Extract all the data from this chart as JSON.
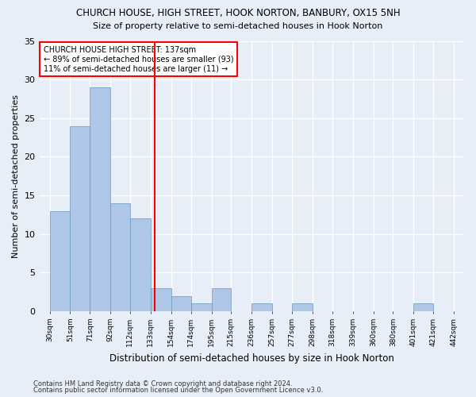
{
  "title": "CHURCH HOUSE, HIGH STREET, HOOK NORTON, BANBURY, OX15 5NH",
  "subtitle": "Size of property relative to semi-detached houses in Hook Norton",
  "xlabel": "Distribution of semi-detached houses by size in Hook Norton",
  "ylabel": "Number of semi-detached properties",
  "footnote1": "Contains HM Land Registry data © Crown copyright and database right 2024.",
  "footnote2": "Contains public sector information licensed under the Open Government Licence v3.0.",
  "annotation_line1": "CHURCH HOUSE HIGH STREET: 137sqm",
  "annotation_line2": "← 89% of semi-detached houses are smaller (93)",
  "annotation_line3": "11% of semi-detached houses are larger (11) →",
  "bar_color": "#aec6e8",
  "bar_edge_color": "#6699bb",
  "marker_color": "red",
  "marker_value": 137,
  "bins": [
    30,
    51,
    71,
    92,
    112,
    133,
    154,
    174,
    195,
    215,
    236,
    257,
    277,
    298,
    318,
    339,
    360,
    380,
    401,
    421,
    442
  ],
  "counts": [
    13,
    24,
    29,
    14,
    12,
    3,
    2,
    1,
    3,
    0,
    1,
    0,
    1,
    0,
    0,
    0,
    0,
    0,
    1,
    0
  ],
  "ylim": [
    0,
    35
  ],
  "yticks": [
    0,
    5,
    10,
    15,
    20,
    25,
    30,
    35
  ],
  "background_color": "#e8eef8",
  "grid_color": "#ffffff"
}
